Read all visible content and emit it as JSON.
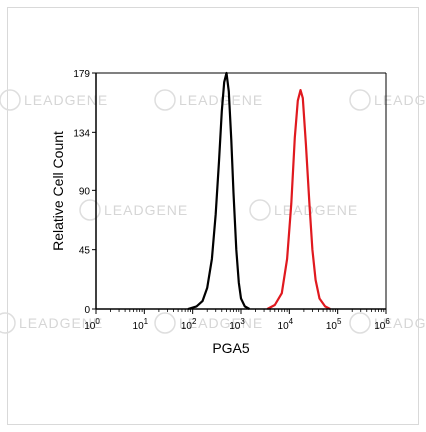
{
  "chart_data": {
    "type": "line",
    "title": "",
    "xlabel": "PGA5",
    "ylabel": "Relative Cell Count",
    "x_scale": "log",
    "xlim": [
      1,
      1000000
    ],
    "ylim": [
      0,
      179
    ],
    "y_ticks": [
      0,
      45,
      90,
      134,
      179
    ],
    "x_ticks": [
      {
        "value": 1,
        "base": "10",
        "exp": "0"
      },
      {
        "value": 10,
        "base": "10",
        "exp": "1"
      },
      {
        "value": 100,
        "base": "10",
        "exp": "2"
      },
      {
        "value": 1000,
        "base": "10",
        "exp": "3"
      },
      {
        "value": 10000,
        "base": "10",
        "exp": "4"
      },
      {
        "value": 100000,
        "base": "10",
        "exp": "5"
      },
      {
        "value": 1000000,
        "base": "10",
        "exp": "6"
      }
    ],
    "grid": false,
    "series": [
      {
        "color": "#000000",
        "x": [
          80,
          120,
          160,
          200,
          250,
          300,
          350,
          400,
          450,
          500,
          560,
          630,
          700,
          800,
          900,
          1000,
          1200,
          1500
        ],
        "y": [
          0,
          2,
          6,
          16,
          38,
          72,
          112,
          150,
          172,
          179,
          165,
          128,
          88,
          45,
          20,
          8,
          2,
          0
        ]
      },
      {
        "color": "#e0191f",
        "x": [
          3500,
          5000,
          7000,
          9000,
          11000,
          13000,
          15000,
          17000,
          19000,
          22000,
          26000,
          30000,
          35000,
          42000,
          55000,
          70000
        ],
        "y": [
          0,
          3,
          12,
          38,
          80,
          130,
          158,
          166,
          160,
          125,
          80,
          45,
          22,
          8,
          2,
          0
        ]
      }
    ]
  },
  "watermark": {
    "text": "LEADGENE"
  }
}
